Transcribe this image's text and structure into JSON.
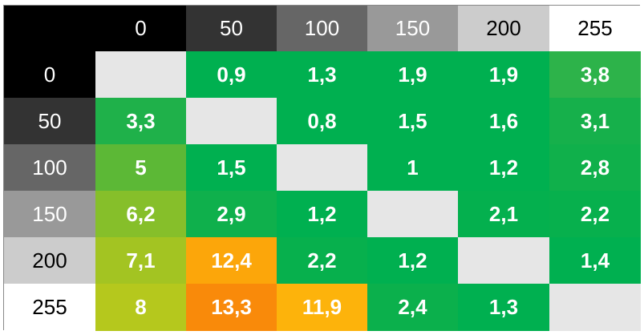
{
  "table": {
    "columns": [
      "0",
      "50",
      "100",
      "150",
      "200",
      "255"
    ],
    "rows": [
      {
        "label": "0",
        "cells": [
          null,
          "0,9",
          "1,3",
          "1,9",
          "1,9",
          "3,8"
        ]
      },
      {
        "label": "50",
        "cells": [
          "3,3",
          null,
          "0,8",
          "1,5",
          "1,6",
          "3,1"
        ]
      },
      {
        "label": "100",
        "cells": [
          "5",
          "1,5",
          null,
          "1",
          "1,2",
          "2,8"
        ]
      },
      {
        "label": "150",
        "cells": [
          "6,2",
          "2,9",
          "1,2",
          null,
          "2,1",
          "2,2"
        ]
      },
      {
        "label": "200",
        "cells": [
          "7,1",
          "12,4",
          "2,2",
          "1,2",
          null,
          "1,4"
        ]
      },
      {
        "label": "255",
        "cells": [
          "8",
          "13,3",
          "11,9",
          "2,4",
          "1,3",
          null
        ]
      }
    ],
    "cell_colors": [
      [
        "#e6e6e6",
        "#00b050",
        "#00b050",
        "#00b050",
        "#00b050",
        "#2db34a"
      ],
      [
        "#1fb14a",
        "#e6e6e6",
        "#00b050",
        "#00b050",
        "#00b050",
        "#16b04b"
      ],
      [
        "#5cb836",
        "#00b050",
        "#e6e6e6",
        "#00b050",
        "#00b050",
        "#10b04b"
      ],
      [
        "#86bf2a",
        "#0fb04c",
        "#00b050",
        "#e6e6e6",
        "#04b04e",
        "#07b04d"
      ],
      [
        "#a3c422",
        "#fca60a",
        "#07b04d",
        "#00b050",
        "#e6e6e6",
        "#00b050"
      ],
      [
        "#b5c81d",
        "#f98a0a",
        "#fdb30b",
        "#0bb04c",
        "#00b050",
        "#e6e6e6"
      ]
    ]
  }
}
